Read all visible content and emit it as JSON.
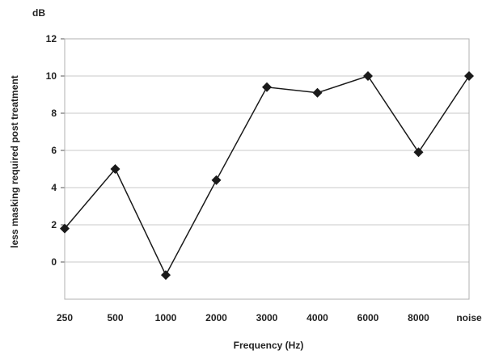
{
  "chart_data": {
    "type": "line",
    "categories": [
      "250",
      "500",
      "1000",
      "2000",
      "3000",
      "4000",
      "6000",
      "8000",
      "noise"
    ],
    "series": [
      {
        "values": [
          1.8,
          5.0,
          -0.7,
          4.4,
          9.4,
          9.1,
          10.0,
          5.9,
          10.0
        ]
      }
    ],
    "ylim": [
      -2,
      12
    ],
    "yticks": [
      12,
      10,
      8,
      6,
      4,
      2,
      0
    ],
    "ytick_labels": [
      "12",
      "10",
      "8",
      "6",
      "4",
      "2",
      "0"
    ],
    "ylabel": "less masking required post treatment",
    "yunit": "dB",
    "xlabel": "Frequency (Hz)",
    "grid": true,
    "legend": "none",
    "colors": {
      "line": "#1a1a1a",
      "marker": "#1a1a1a",
      "grid": "#c8c8c8",
      "frame": "#b0b0b0"
    }
  }
}
